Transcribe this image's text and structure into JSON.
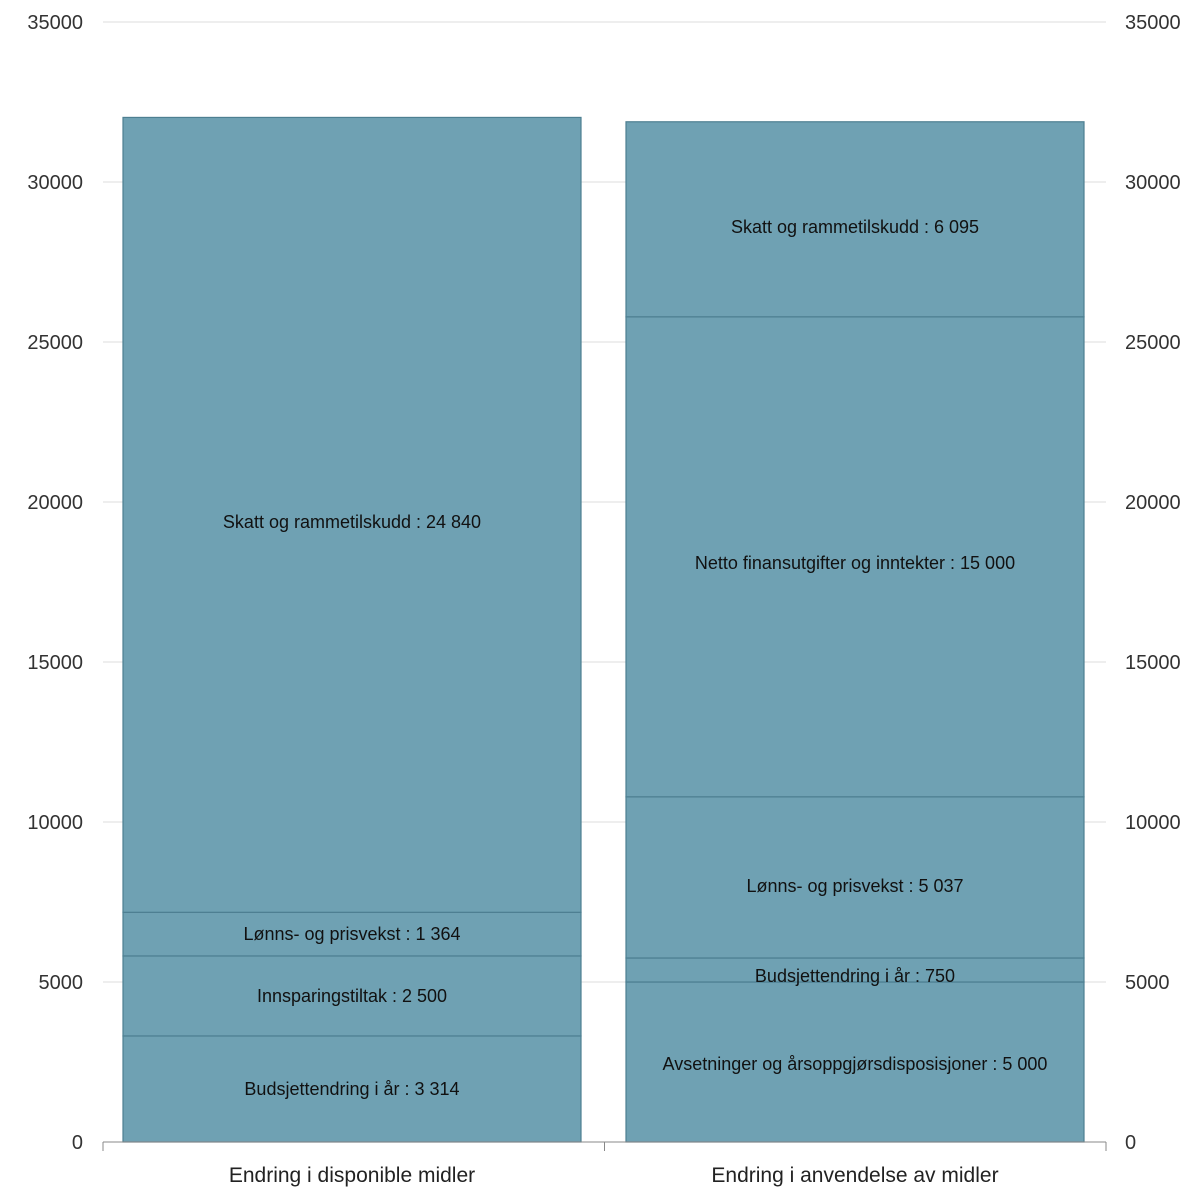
{
  "chart_data": {
    "type": "bar",
    "stacked": true,
    "categories": [
      "Endring i disponible midler",
      "Endring i anvendelse av midler"
    ],
    "ylim": [
      0,
      35000
    ],
    "yticks": [
      0,
      5000,
      10000,
      15000,
      20000,
      25000,
      30000,
      35000
    ],
    "y_axis_both_sides": true,
    "grid": true,
    "bar_color": "#6fa1b3",
    "bar_edge_color": "#4d7f91",
    "stacks": [
      {
        "category": "Endring i disponible midler",
        "segments": [
          {
            "name": "Budsjettendring i år",
            "value": 3314,
            "label": "Budsjettendring i år : 3 314"
          },
          {
            "name": "Innsparingstiltak",
            "value": 2500,
            "label": "Innsparingstiltak : 2 500"
          },
          {
            "name": "Lønns- og prisvekst",
            "value": 1364,
            "label": "Lønns- og prisvekst : 1 364"
          },
          {
            "name": "Skatt og rammetilskudd",
            "value": 24840,
            "label": "Skatt og rammetilskudd : 24 840"
          }
        ]
      },
      {
        "category": "Endring i anvendelse av midler",
        "segments": [
          {
            "name": "Avsetninger og årsoppgjørsdisposisjoner",
            "value": 5000,
            "label": "Avsetninger og årsoppgjørsdisposisjoner : 5 000"
          },
          {
            "name": "Budsjettendring i år",
            "value": 750,
            "label": "Budsjettendring i år : 750"
          },
          {
            "name": "Lønns- og prisvekst",
            "value": 5037,
            "label": "Lønns- og prisvekst : 5 037"
          },
          {
            "name": "Netto finansutgifter og inntekter",
            "value": 15000,
            "label": "Netto finansutgifter og inntekter : 15 000"
          },
          {
            "name": "Skatt og rammetilskudd",
            "value": 6095,
            "label": "Skatt og rammetilskudd : 6 095"
          }
        ]
      }
    ]
  }
}
